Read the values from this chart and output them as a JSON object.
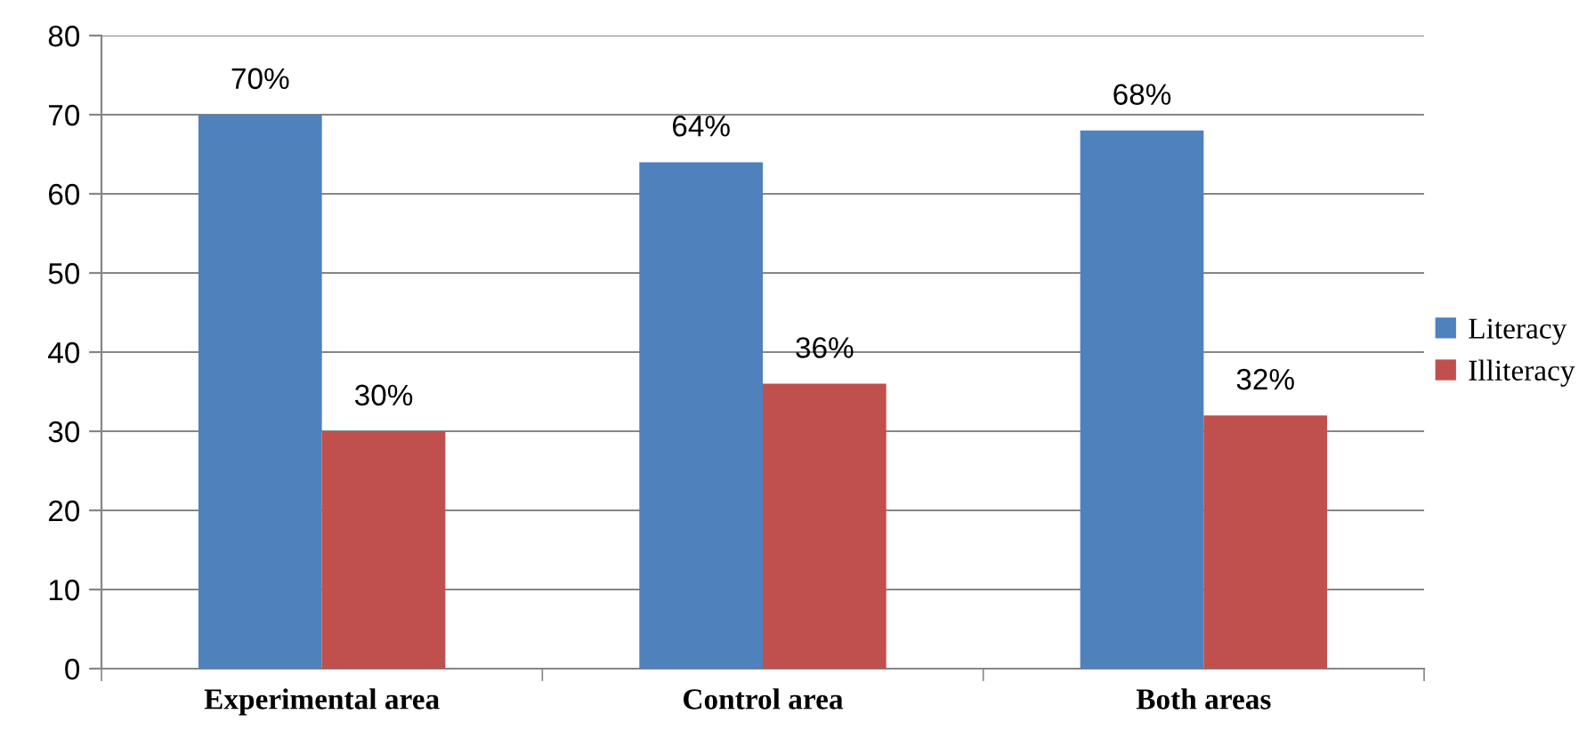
{
  "chart_data": {
    "type": "bar",
    "categories": [
      "Experimental area",
      "Control area",
      "Both areas"
    ],
    "series": [
      {
        "name": "Literacy",
        "color": "#4f81bd",
        "values": [
          70,
          64,
          68
        ],
        "value_labels": [
          "70%",
          "64%",
          "68%"
        ]
      },
      {
        "name": "Illiteracy",
        "color": "#c0504d",
        "values": [
          30,
          36,
          32
        ],
        "value_labels": [
          "30%",
          "36%",
          "32%"
        ]
      }
    ],
    "ylim": [
      0,
      80
    ],
    "yticks": [
      0,
      10,
      20,
      30,
      40,
      50,
      60,
      70,
      80
    ],
    "grid": "y",
    "legend": "right"
  }
}
